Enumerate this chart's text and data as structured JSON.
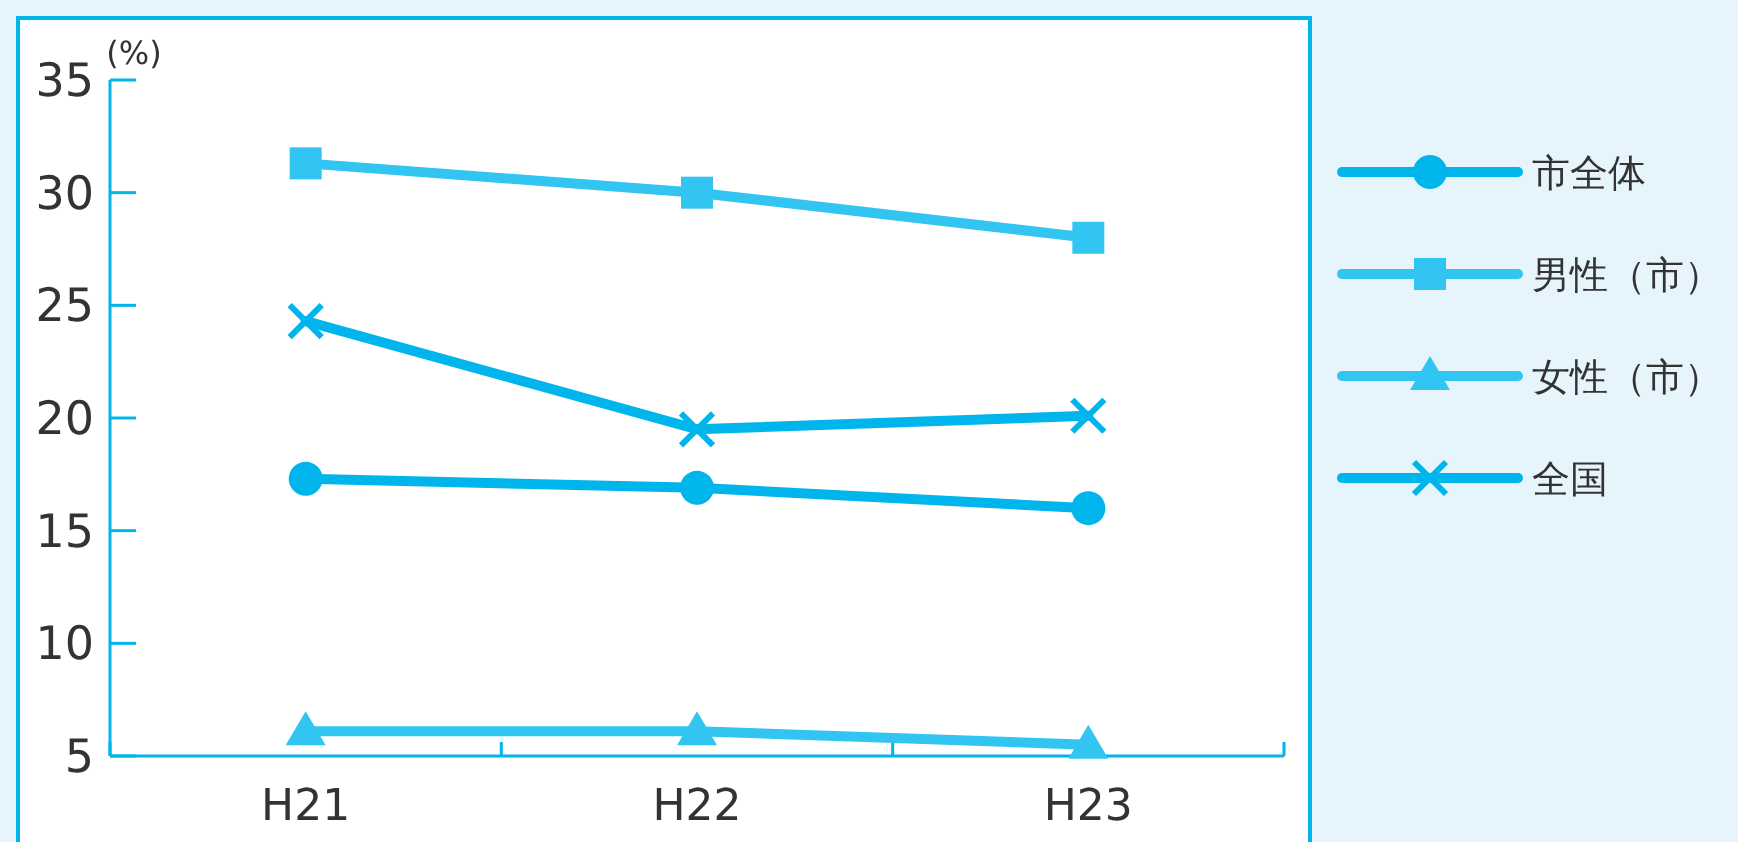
{
  "chart_data": {
    "type": "line",
    "ylabel": "(%)",
    "categories": [
      "H21",
      "H22",
      "H23"
    ],
    "ylim": [
      5,
      35
    ],
    "yticks": [
      5,
      10,
      15,
      20,
      25,
      30,
      35
    ],
    "grid": false,
    "legend": "right",
    "series": [
      {
        "name": "市全体",
        "color": "#00b4ec",
        "marker": "circle",
        "values": [
          17.3,
          16.9,
          16.0
        ]
      },
      {
        "name": "男性（市）",
        "color": "#33c5f2",
        "marker": "square",
        "values": [
          31.3,
          30.0,
          28.0
        ]
      },
      {
        "name": "女性（市）",
        "color": "#33c5f2",
        "marker": "triangle",
        "values": [
          6.1,
          6.1,
          5.5
        ]
      },
      {
        "name": "全国",
        "color": "#00b4ec",
        "marker": "cross",
        "values": [
          24.3,
          19.5,
          20.1
        ]
      }
    ]
  }
}
